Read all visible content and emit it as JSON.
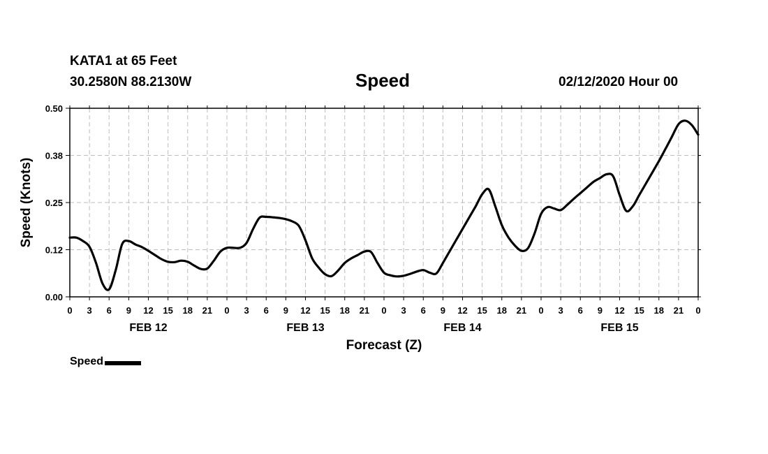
{
  "header": {
    "station": "KATA1 at 65 Feet",
    "coords": "30.2580N 88.2130W",
    "title": "Speed",
    "run_time": "02/12/2020 Hour 00"
  },
  "legend": {
    "label": "Speed"
  },
  "chart_data": {
    "type": "line",
    "title": "Speed",
    "xlabel": "Forecast (Z)",
    "ylabel": "Speed (Knots)",
    "x_unit": "hours from 02/12/2020 00Z",
    "xlim": [
      0,
      96
    ],
    "ylim": [
      0,
      0.5
    ],
    "y_ticks": [
      "0.00",
      "0.12",
      "0.25",
      "0.38",
      "0.50"
    ],
    "x_tick_labels": [
      "0",
      "3",
      "6",
      "9",
      "12",
      "15",
      "18",
      "21",
      "0",
      "3",
      "6",
      "9",
      "12",
      "15",
      "18",
      "21",
      "0",
      "3",
      "6",
      "9",
      "12",
      "15",
      "18",
      "21",
      "0",
      "3",
      "6",
      "9",
      "12",
      "15",
      "18",
      "21",
      "0"
    ],
    "day_labels": [
      {
        "label": "FEB 12",
        "hour": 12
      },
      {
        "label": "FEB 13",
        "hour": 36
      },
      {
        "label": "FEB 14",
        "hour": 60
      },
      {
        "label": "FEB 15",
        "hour": 84
      }
    ],
    "grid": true,
    "series": [
      {
        "name": "Speed",
        "color": "#000000",
        "x": [
          0,
          1,
          2,
          3,
          4,
          5,
          6,
          7,
          8,
          9,
          10,
          11,
          12,
          13,
          14,
          15,
          16,
          17,
          18,
          19,
          20,
          21,
          22,
          23,
          24,
          25,
          26,
          27,
          28,
          29,
          30,
          31,
          32,
          33,
          34,
          35,
          36,
          37,
          38,
          39,
          40,
          41,
          42,
          43,
          44,
          45,
          46,
          47,
          48,
          49,
          50,
          51,
          52,
          53,
          54,
          55,
          56,
          57,
          58,
          59,
          60,
          61,
          62,
          63,
          64,
          65,
          66,
          67,
          68,
          69,
          70,
          71,
          72,
          73,
          74,
          75,
          76,
          77,
          78,
          79,
          80,
          81,
          82,
          83,
          84,
          85,
          86,
          87,
          88,
          89,
          90,
          91,
          92,
          93,
          94,
          95,
          96
        ],
        "values": [
          0.157,
          0.157,
          0.148,
          0.133,
          0.09,
          0.035,
          0.02,
          0.07,
          0.14,
          0.148,
          0.139,
          0.132,
          0.122,
          0.111,
          0.1,
          0.093,
          0.092,
          0.096,
          0.093,
          0.083,
          0.074,
          0.075,
          0.096,
          0.12,
          0.13,
          0.13,
          0.13,
          0.143,
          0.18,
          0.21,
          0.212,
          0.211,
          0.209,
          0.206,
          0.2,
          0.188,
          0.15,
          0.103,
          0.078,
          0.06,
          0.055,
          0.07,
          0.09,
          0.102,
          0.111,
          0.12,
          0.119,
          0.09,
          0.064,
          0.057,
          0.054,
          0.056,
          0.061,
          0.067,
          0.071,
          0.064,
          0.062,
          0.09,
          0.12,
          0.15,
          0.18,
          0.21,
          0.24,
          0.272,
          0.285,
          0.24,
          0.19,
          0.158,
          0.136,
          0.122,
          0.129,
          0.168,
          0.22,
          0.238,
          0.234,
          0.23,
          0.244,
          0.26,
          0.275,
          0.29,
          0.305,
          0.315,
          0.325,
          0.32,
          0.27,
          0.228,
          0.24,
          0.27,
          0.3,
          0.33,
          0.36,
          0.392,
          0.425,
          0.458,
          0.467,
          0.456,
          0.43
        ]
      }
    ]
  }
}
